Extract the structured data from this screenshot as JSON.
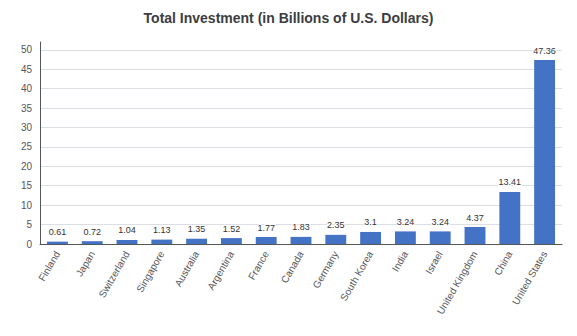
{
  "chart_data": {
    "type": "bar",
    "title": "Total Investment (in Billions of U.S. Dollars)",
    "categories": [
      "Finland",
      "Japan",
      "Switzerland",
      "Singapore",
      "Australia",
      "Argentina",
      "France",
      "Canada",
      "Germany",
      "South Korea",
      "India",
      "Israel",
      "United Kingdom",
      "China",
      "United States"
    ],
    "values": [
      0.61,
      0.72,
      1.04,
      1.13,
      1.35,
      1.52,
      1.77,
      1.83,
      2.35,
      3.1,
      3.24,
      3.24,
      4.37,
      13.41,
      47.36
    ],
    "color": "#4472C4",
    "ylim": [
      0,
      52
    ],
    "yticks": [
      0,
      5,
      10,
      15,
      20,
      25,
      30,
      35,
      40,
      45,
      50
    ],
    "grid": true,
    "data_labels": true
  }
}
